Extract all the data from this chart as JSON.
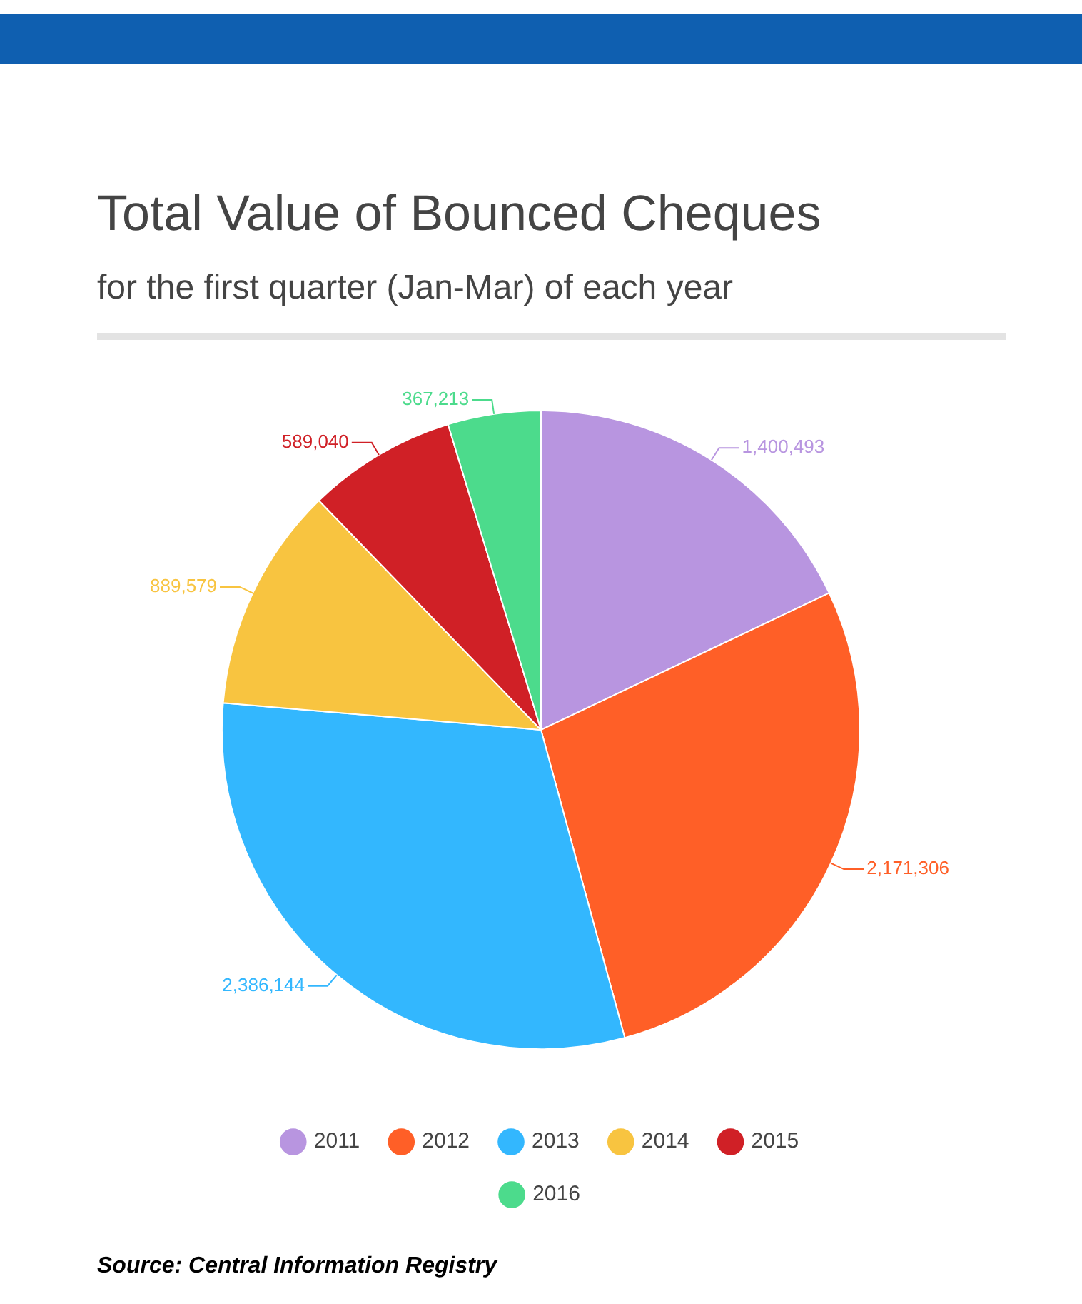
{
  "chart_data": {
    "type": "pie",
    "title": "Total Value of Bounced Cheques",
    "subtitle": "for the first quarter (Jan-Mar) of each year",
    "categories": [
      "2011",
      "2012",
      "2013",
      "2014",
      "2015",
      "2016"
    ],
    "values": [
      1400493,
      2171306,
      2386144,
      889579,
      589040,
      367213
    ],
    "value_labels": [
      "1,400,493",
      "2,171,306",
      "2,386,144",
      "889,579",
      "589,040",
      "367,213"
    ],
    "colors": [
      "#b895e0",
      "#ff5f27",
      "#33b7fe",
      "#f8c440",
      "#d02026",
      "#4cdb8c"
    ],
    "legend": "bottom",
    "annotations": [
      "Source: Central Information Registry"
    ]
  }
}
